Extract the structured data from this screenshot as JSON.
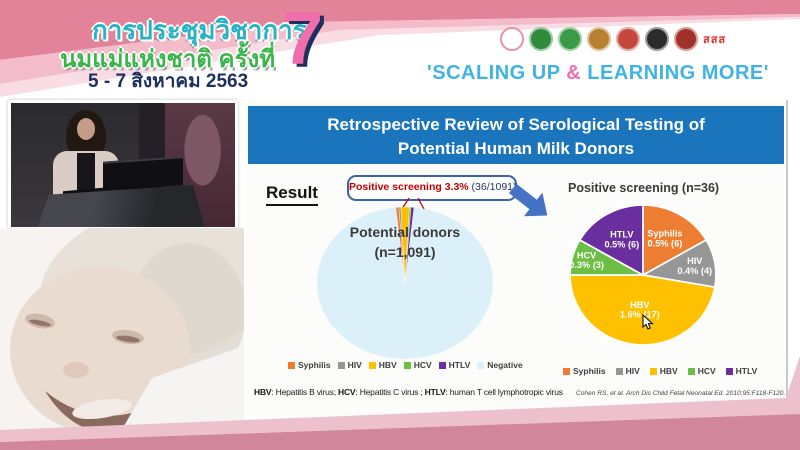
{
  "header": {
    "title_line1": "การประชุมวิชาการ",
    "title_line2": "นมแม่แห่งชาติ ครั้งที่",
    "date_line": "5 - 7 สิงหาคม 2563",
    "edition_number": "7",
    "slogan_part1": "'SCALING UP ",
    "slogan_amp": "&",
    "slogan_part2": " LEARNING MORE'",
    "colors": {
      "slogan_blue": "#3fb3e3",
      "slogan_pink": "#f06eac",
      "band_dark_pink": "#e28399"
    },
    "logos": [
      {
        "name": "breastfeeding-foundation-logo",
        "style": "ring",
        "color": "#e493a6"
      },
      {
        "name": "green-health-logo-1",
        "style": "solid",
        "color": "#2e8b3a"
      },
      {
        "name": "green-health-logo-2",
        "style": "solid",
        "color": "#3a9a46"
      },
      {
        "name": "royal-gold-emblem-logo",
        "style": "solid",
        "color": "#b8802f"
      },
      {
        "name": "royal-crown-emblem-logo",
        "style": "solid",
        "color": "#c5483f"
      },
      {
        "name": "black-society-emblem-logo",
        "style": "solid",
        "color": "#2b2b2b"
      },
      {
        "name": "dark-red-emblem-logo",
        "style": "solid",
        "color": "#a03028"
      },
      {
        "name": "thai-health-sss-logo",
        "style": "text",
        "color": "#e03131",
        "label": "สสส"
      }
    ]
  },
  "slide": {
    "title_line1": "Retrospective Review of Serological Testing of",
    "title_line2": "Potential Human Milk Donors",
    "title_bar_color": "#1b75bc",
    "result_label": "Result",
    "callout": {
      "highlight": "Positive screening 3.3%",
      "detail": " (36/1091)"
    },
    "left_pie_caption_line1": "Potential donors",
    "left_pie_caption_line2": "(n=1,091)",
    "right_pie_title": "Positive screening (n=36)",
    "arrow_color": "#4472c4",
    "footnote_parts": [
      {
        "text": "HBV",
        "bold": true
      },
      {
        "text": ": Hepatitis B virus; ",
        "bold": false
      },
      {
        "text": "HCV",
        "bold": true
      },
      {
        "text": ": Hepatitis C virus ; ",
        "bold": false
      },
      {
        "text": "HTLV",
        "bold": true
      },
      {
        "text": ": human T cell lymphotropic virus",
        "bold": false
      }
    ],
    "citation": "Cohen RS, et al. Arch Dis Child Fetal Neonatal Ed. 2010;95:F118-F120."
  },
  "chart_data": [
    {
      "type": "pie",
      "title": "Potential donors (n=1,091)",
      "total": 1091,
      "annotation": "Positive screening 3.3% (36/1091)",
      "legend_position": "bottom",
      "slices": [
        {
          "label": "Syphilis",
          "value": 6,
          "color": "#ED7D31"
        },
        {
          "label": "HIV",
          "value": 4,
          "color": "#969696"
        },
        {
          "label": "HBV",
          "value": 17,
          "color": "#FFC000"
        },
        {
          "label": "HCV",
          "value": 3,
          "color": "#6CBE45"
        },
        {
          "label": "HTLV",
          "value": 6,
          "color": "#6A2E9E"
        },
        {
          "label": "Negative",
          "value": 1055,
          "color": "#DCF0FA"
        }
      ]
    },
    {
      "type": "pie",
      "title": "Positive screening (n=36)",
      "total": 36,
      "legend_position": "bottom",
      "slices": [
        {
          "label": "Syphilis",
          "value": 6,
          "pct_label": "0.5% (6)",
          "color": "#ED7D31"
        },
        {
          "label": "HIV",
          "value": 4,
          "pct_label": "0.4% (4)",
          "color": "#969696"
        },
        {
          "label": "HBV",
          "value": 17,
          "pct_label": "1.6% (17)",
          "color": "#FFC000"
        },
        {
          "label": "HCV",
          "value": 3,
          "pct_label": "0.3% (3)",
          "color": "#6CBE45"
        },
        {
          "label": "HTLV",
          "value": 6,
          "pct_label": "0.5% (6)",
          "color": "#6A2E9E"
        }
      ]
    }
  ]
}
